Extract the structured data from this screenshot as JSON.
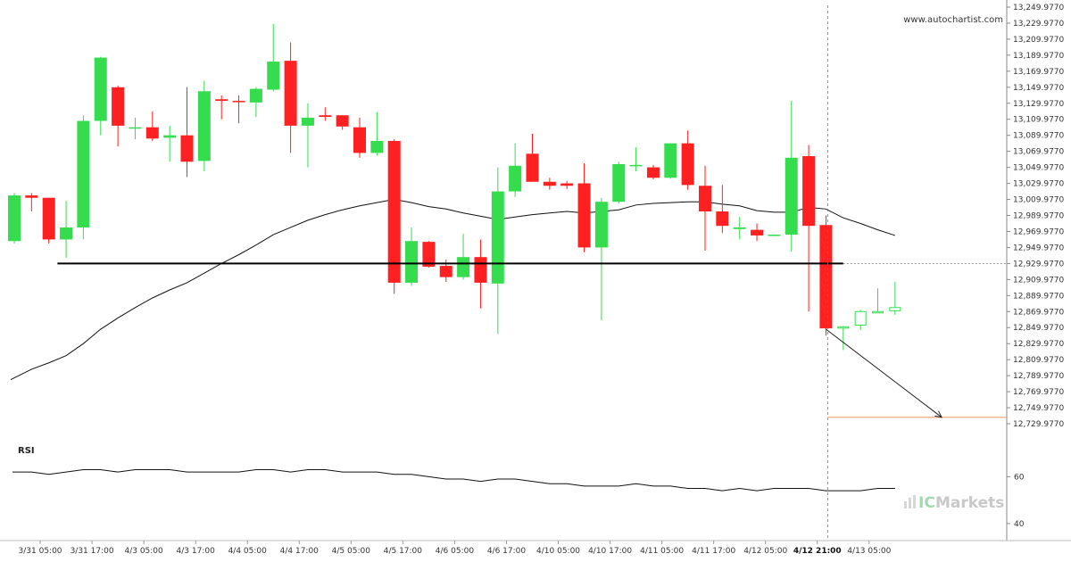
{
  "watermark": "www.autochartist.com",
  "logo": {
    "prefix": "IC",
    "suffix": "Markets"
  },
  "chart_data": [
    {
      "type": "candlestick",
      "ylim": [
        12719.977,
        13249.977
      ],
      "y_ticks": [
        "13,249.9770",
        "13,229.9770",
        "13,209.9770",
        "13,189.9770",
        "13,169.9770",
        "13,149.9770",
        "13,129.9770",
        "13,109.9770",
        "13,089.9770",
        "13,069.9770",
        "13,049.9770",
        "13,029.9770",
        "13,009.9770",
        "12,989.9770",
        "12,969.9770",
        "12,949.9770",
        "12,929.9770",
        "12,909.9770",
        "12,889.9770",
        "12,869.9770",
        "12,849.9770",
        "12,829.9770",
        "12,809.9770",
        "12,789.9770",
        "12,769.9770",
        "12,749.9770",
        "12,729.9770"
      ],
      "x_ticks": [
        {
          "label": "3/31 05:00",
          "index": 1.5
        },
        {
          "label": "3/31 17:00",
          "index": 4.5
        },
        {
          "label": "4/3 05:00",
          "index": 7.5
        },
        {
          "label": "4/3 17:00",
          "index": 10.5
        },
        {
          "label": "4/4 05:00",
          "index": 13.5
        },
        {
          "label": "4/4 17:00",
          "index": 16.5
        },
        {
          "label": "4/5 05:00",
          "index": 19.5
        },
        {
          "label": "4/5 17:00",
          "index": 22.5
        },
        {
          "label": "4/6 05:00",
          "index": 25.5
        },
        {
          "label": "4/6 17:00",
          "index": 28.5
        },
        {
          "label": "4/10 05:00",
          "index": 31.5
        },
        {
          "label": "4/10 17:00",
          "index": 34.5
        },
        {
          "label": "4/11 05:00",
          "index": 37.5
        },
        {
          "label": "4/11 17:00",
          "index": 40.5
        },
        {
          "label": "4/12 05:00",
          "index": 43.5
        },
        {
          "label": "4/12 21:00",
          "index": 46.5,
          "highlight": true
        },
        {
          "label": "4/13 05:00",
          "index": 49.5
        }
      ],
      "candles": [
        {
          "o": 12958,
          "h": 13018,
          "l": 12955,
          "c": 13015
        },
        {
          "o": 13015,
          "h": 13018,
          "l": 12995,
          "c": 13012
        },
        {
          "o": 13012,
          "h": 13012,
          "l": 12955,
          "c": 12960
        },
        {
          "o": 12960,
          "h": 13008,
          "l": 12937,
          "c": 12975
        },
        {
          "o": 12975,
          "h": 13115,
          "l": 12960,
          "c": 13108
        },
        {
          "o": 13108,
          "h": 13188,
          "l": 13090,
          "c": 13187
        },
        {
          "o": 13150,
          "h": 13152,
          "l": 13076,
          "c": 13102
        },
        {
          "o": 13100,
          "h": 13112,
          "l": 13085,
          "c": 13100
        },
        {
          "o": 13100,
          "h": 13120,
          "l": 13083,
          "c": 13086
        },
        {
          "o": 13087,
          "h": 13102,
          "l": 13057,
          "c": 13090
        },
        {
          "o": 13090,
          "h": 13150,
          "l": 13038,
          "c": 13057
        },
        {
          "o": 13058,
          "h": 13158,
          "l": 13045,
          "c": 13145
        },
        {
          "o": 13135,
          "h": 13140,
          "l": 13110,
          "c": 13133
        },
        {
          "o": 13133,
          "h": 13140,
          "l": 13105,
          "c": 13132
        },
        {
          "o": 13131,
          "h": 13150,
          "l": 13113,
          "c": 13148
        },
        {
          "o": 13147,
          "h": 13229,
          "l": 13145,
          "c": 13182
        },
        {
          "o": 13183,
          "h": 13206,
          "l": 13068,
          "c": 13102
        },
        {
          "o": 13102,
          "h": 13130,
          "l": 13050,
          "c": 13112
        },
        {
          "o": 13115,
          "h": 13125,
          "l": 13108,
          "c": 13113
        },
        {
          "o": 13115,
          "h": 13115,
          "l": 13097,
          "c": 13101
        },
        {
          "o": 13100,
          "h": 13112,
          "l": 13062,
          "c": 13068
        },
        {
          "o": 13068,
          "h": 13119,
          "l": 13065,
          "c": 13083
        },
        {
          "o": 13083,
          "h": 13085,
          "l": 12892,
          "c": 12906
        },
        {
          "o": 12906,
          "h": 12975,
          "l": 12902,
          "c": 12958
        },
        {
          "o": 12957,
          "h": 12958,
          "l": 12925,
          "c": 12926
        },
        {
          "o": 12927,
          "h": 12935,
          "l": 12907,
          "c": 12913
        },
        {
          "o": 12913,
          "h": 12967,
          "l": 12910,
          "c": 12938
        },
        {
          "o": 12938,
          "h": 12960,
          "l": 12874,
          "c": 12906
        },
        {
          "o": 12905,
          "h": 13050,
          "l": 12842,
          "c": 13020
        },
        {
          "o": 13020,
          "h": 13080,
          "l": 13013,
          "c": 13052
        },
        {
          "o": 13067,
          "h": 13092,
          "l": 13032,
          "c": 13032
        },
        {
          "o": 13032,
          "h": 13037,
          "l": 13022,
          "c": 13027
        },
        {
          "o": 13030,
          "h": 13033,
          "l": 13023,
          "c": 13027
        },
        {
          "o": 13030,
          "h": 13055,
          "l": 12944,
          "c": 12950
        },
        {
          "o": 12950,
          "h": 13012,
          "l": 12859,
          "c": 13007
        },
        {
          "o": 13007,
          "h": 13057,
          "l": 13005,
          "c": 13054
        },
        {
          "o": 13053,
          "h": 13075,
          "l": 13045,
          "c": 13053
        },
        {
          "o": 13050,
          "h": 13053,
          "l": 13035,
          "c": 13037
        },
        {
          "o": 13037,
          "h": 13080,
          "l": 13036,
          "c": 13080
        },
        {
          "o": 13080,
          "h": 13096,
          "l": 13022,
          "c": 13028
        },
        {
          "o": 13027,
          "h": 13052,
          "l": 12946,
          "c": 12995
        },
        {
          "o": 12995,
          "h": 13028,
          "l": 12968,
          "c": 12977
        },
        {
          "o": 12973,
          "h": 12988,
          "l": 12960,
          "c": 12975
        },
        {
          "o": 12972,
          "h": 12980,
          "l": 12958,
          "c": 12965
        },
        {
          "o": 12966,
          "h": 12966,
          "l": 12965,
          "c": 12966
        },
        {
          "o": 12966,
          "h": 13133,
          "l": 12945,
          "c": 13062
        },
        {
          "o": 13064,
          "h": 13078,
          "l": 12870,
          "c": 12977
        },
        {
          "o": 12978,
          "h": 12990,
          "l": 12840,
          "c": 12849
        },
        {
          "o": 12850,
          "h": 12852,
          "l": 12822,
          "c": 12851
        },
        {
          "o": 12853,
          "h": 12872,
          "l": 12847,
          "c": 12870
        },
        {
          "o": 12870,
          "h": 12899,
          "l": 12868,
          "c": 12870
        },
        {
          "o": 12871,
          "h": 12907,
          "l": 12866,
          "c": 12875
        }
      ],
      "moving_average": [
        12785,
        12798,
        12806,
        12815,
        12830,
        12848,
        12862,
        12875,
        12887,
        12897,
        12906,
        12918,
        12930,
        12941,
        12953,
        12966,
        12975,
        12984,
        12991,
        12997,
        13002,
        13006,
        13010,
        13006,
        13001,
        12998,
        12993,
        12989,
        12985,
        12988,
        12991,
        12993,
        12995,
        12993,
        12995,
        12997,
        13003,
        13005,
        13006,
        13007,
        13007,
        13004,
        13002,
        12996,
        12994,
        12994,
        13000,
        12998,
        12987,
        12980,
        12972,
        12965
      ],
      "support_line": {
        "value": 12929.977,
        "from_index": 2.5,
        "to_index": 48
      },
      "forecast": {
        "from_index": 47,
        "from_value": 12848,
        "to_index": 53.7,
        "to_value": 12738
      },
      "target_level": 12738,
      "current_level": 12929.977
    },
    {
      "type": "line",
      "title": "RSI",
      "ylim": [
        35,
        75
      ],
      "y_ticks": [
        "60",
        "40"
      ],
      "values": [
        62,
        62,
        61,
        62,
        63,
        63,
        62,
        63,
        63,
        63,
        62,
        62,
        62,
        62,
        63,
        63,
        62,
        63,
        63,
        62,
        62,
        62,
        61,
        61,
        60,
        59,
        59,
        58,
        59,
        59,
        58,
        57,
        57,
        56,
        56,
        56,
        57,
        56,
        56,
        55,
        55,
        54,
        55,
        54,
        55,
        55,
        55,
        54,
        54,
        54,
        55,
        55
      ]
    }
  ]
}
